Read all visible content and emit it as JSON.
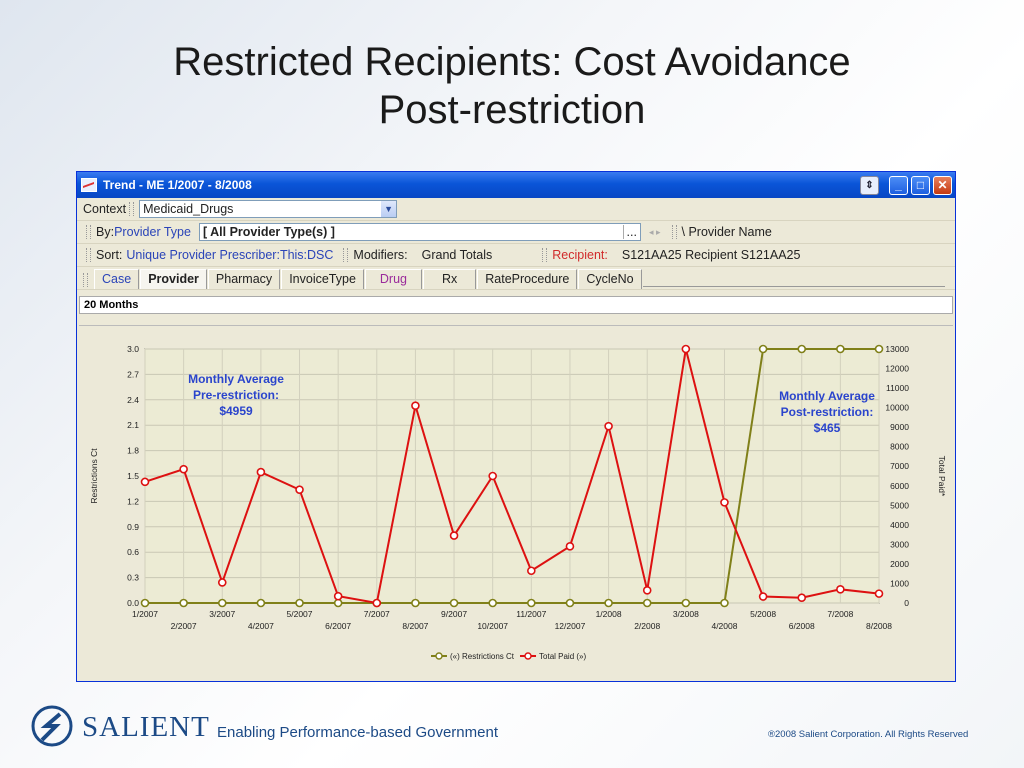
{
  "slide": {
    "title_line1": "Restricted Recipients: Cost Avoidance",
    "title_line2": "Post-restriction"
  },
  "window": {
    "title": "Trend - ME 1/2007 - 8/2008",
    "icon": "trend-chart-icon"
  },
  "toolbar": {
    "context_label": "Context",
    "context_value": "Medicaid_Drugs",
    "by_label": "By:",
    "by_value": "Provider Type",
    "provider_type_value": "[ All Provider Type(s) ]",
    "ellipsis": "...",
    "provider_name_label": "\\ Provider Name",
    "sort_label": "Sort:",
    "sort_value": "Unique Provider Prescriber:This:DSC",
    "modifiers_label": "Modifiers:",
    "modifiers_value": "Grand Totals",
    "recipient_label": "Recipient:",
    "recipient_value": "S121AA25 Recipient S121AA25"
  },
  "tabs": [
    {
      "label": "Case",
      "color": "blue"
    },
    {
      "label": "Provider",
      "active": true
    },
    {
      "label": "Pharmacy"
    },
    {
      "label": "InvoiceType"
    },
    {
      "label": "Drug",
      "color": "purple"
    },
    {
      "label": "Rx"
    },
    {
      "label": "RateProcedure"
    },
    {
      "label": "CycleNo"
    }
  ],
  "pane_title": "20 Months",
  "annotations": {
    "pre_line1": "Monthly Average",
    "pre_line2": "Pre-restriction:",
    "pre_line3": "$4959",
    "post_line1": "Monthly Average",
    "post_line2": "Post-restriction:",
    "post_line3": "$465"
  },
  "chart_data": {
    "type": "line",
    "x": [
      "1/2007",
      "2/2007",
      "3/2007",
      "4/2007",
      "5/2007",
      "6/2007",
      "7/2007",
      "8/2007",
      "9/2007",
      "10/2007",
      "11/2007",
      "12/2007",
      "1/2008",
      "2/2008",
      "3/2008",
      "4/2008",
      "5/2008",
      "6/2008",
      "7/2008",
      "8/2008"
    ],
    "ylabel_left": "Restrictions Ct",
    "ylabel_right": "Total Paid*",
    "ylim_left": [
      0,
      3.0
    ],
    "ylim_right": [
      0,
      13000
    ],
    "yticks_left": [
      "0.0",
      "0.3",
      "0.6",
      "0.9",
      "1.2",
      "1.5",
      "1.8",
      "2.1",
      "2.4",
      "2.7",
      "3.0"
    ],
    "yticks_right": [
      "0",
      "1000",
      "2000",
      "3000",
      "4000",
      "5000",
      "6000",
      "7000",
      "8000",
      "9000",
      "10000",
      "11000",
      "12000",
      "13000"
    ],
    "series": [
      {
        "name": "(«) Restrictions Ct",
        "axis": "left",
        "color": "#808019",
        "values": [
          0,
          0,
          0,
          0,
          0,
          0,
          0,
          0,
          0,
          0,
          0,
          0,
          0,
          0,
          0,
          0,
          3.0,
          3.0,
          3.0,
          3.0
        ]
      },
      {
        "name": "Total Paid (»)",
        "axis": "right",
        "color": "#dd1111",
        "values": [
          6200,
          6850,
          1050,
          6700,
          5800,
          350,
          0,
          10100,
          3450,
          6500,
          1650,
          2900,
          9050,
          650,
          13000,
          5150,
          330,
          270,
          700,
          480
        ]
      }
    ],
    "grid": true,
    "legend": "bottom"
  },
  "footer": {
    "brand": "SALIENT",
    "tagline": "Enabling Performance-based Government",
    "copyright": "®2008 Salient Corporation. All Rights Reserved"
  }
}
